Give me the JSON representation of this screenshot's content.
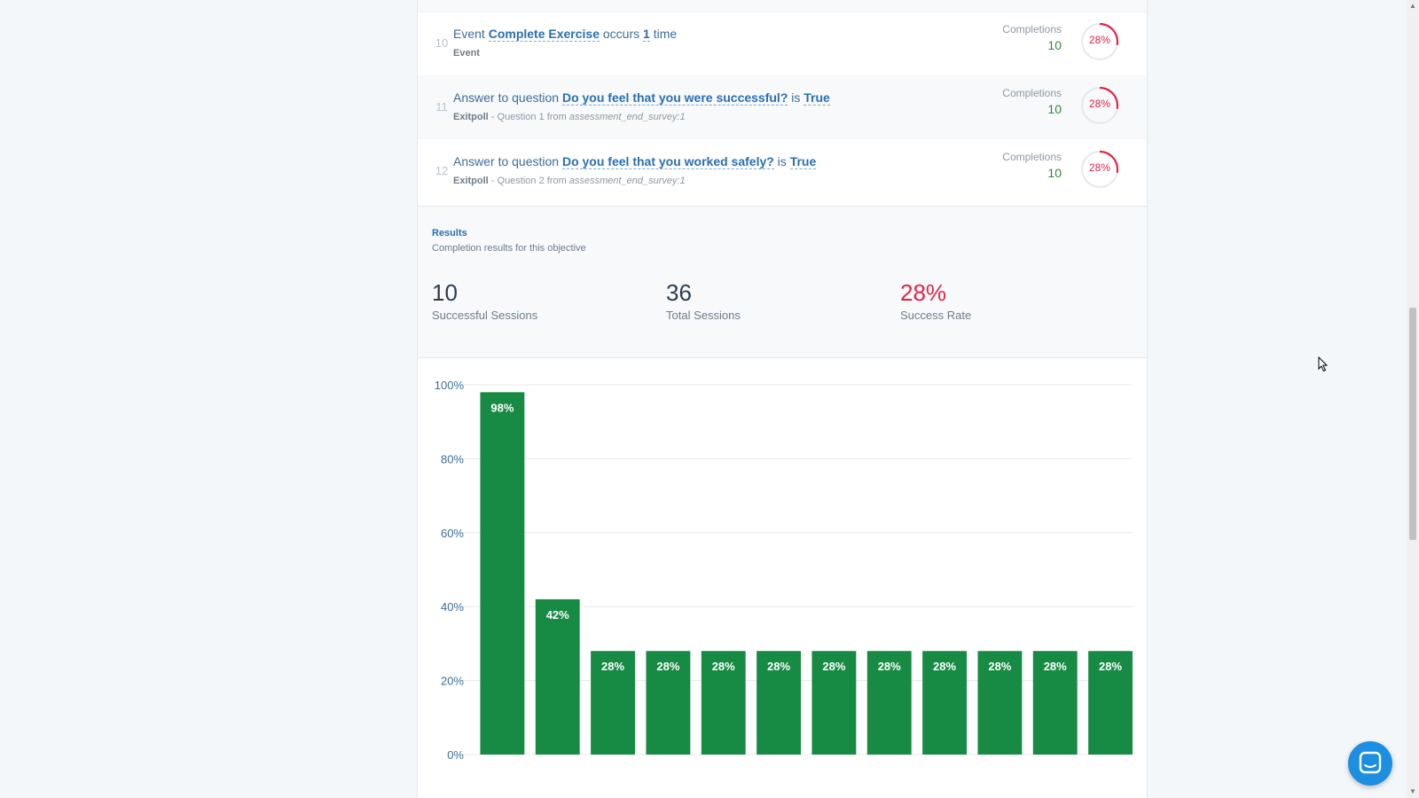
{
  "rows": [
    {
      "num": "10",
      "pre": "Event ",
      "k1": "Complete Exercise",
      "mid": " occurs ",
      "k2": "1",
      "post": " time",
      "sub_bold": "Event",
      "sub_rest": "",
      "sub_italic": "",
      "comp_label": "Completions",
      "comp_value": "10",
      "pct": "28%",
      "ring_fraction": 0.28
    },
    {
      "num": "11",
      "pre": "Answer to question ",
      "k1": "Do you feel that you were successful?",
      "mid": " is ",
      "k2": "True",
      "post": "",
      "sub_bold": "Exitpoll",
      "sub_rest": " - Question 1 from ",
      "sub_italic": "assessment_end_survey:1",
      "comp_label": "Completions",
      "comp_value": "10",
      "pct": "28%",
      "ring_fraction": 0.28
    },
    {
      "num": "12",
      "pre": "Answer to question ",
      "k1": "Do you feel that you worked safely?",
      "mid": " is ",
      "k2": "True",
      "post": "",
      "sub_bold": "Exitpoll",
      "sub_rest": " - Question 2 from ",
      "sub_italic": "assessment_end_survey:1",
      "comp_label": "Completions",
      "comp_value": "10",
      "pct": "28%",
      "ring_fraction": 0.28
    }
  ],
  "results": {
    "title": "Results",
    "subtitle": "Completion results for this objective",
    "stats": [
      {
        "value": "10",
        "label": "Successful Sessions"
      },
      {
        "value": "36",
        "label": "Total Sessions"
      },
      {
        "value": "28%",
        "label": "Success Rate"
      }
    ]
  },
  "colors": {
    "bar": "#178a44",
    "accent_red": "#e0254a",
    "link_blue": "#2a6fb0",
    "chat_button": "#1d8fe0"
  },
  "chart_data": {
    "type": "bar",
    "categories": [
      "",
      "",
      "",
      "",
      "",
      "",
      "",
      "",
      "",
      "",
      "",
      ""
    ],
    "values": [
      98,
      42,
      28,
      28,
      28,
      28,
      28,
      28,
      28,
      28,
      28,
      28
    ],
    "value_labels": [
      "98%",
      "42%",
      "28%",
      "28%",
      "28%",
      "28%",
      "28%",
      "28%",
      "28%",
      "28%",
      "28%",
      "28%"
    ],
    "yticks": [
      "0%",
      "20%",
      "40%",
      "60%",
      "80%",
      "100%"
    ],
    "ylim": [
      0,
      100
    ],
    "grid": true,
    "title": "",
    "xlabel": "",
    "ylabel": ""
  },
  "icons": {
    "chat": "chat-bubble-icon",
    "cursor": "mouse-pointer-icon"
  }
}
